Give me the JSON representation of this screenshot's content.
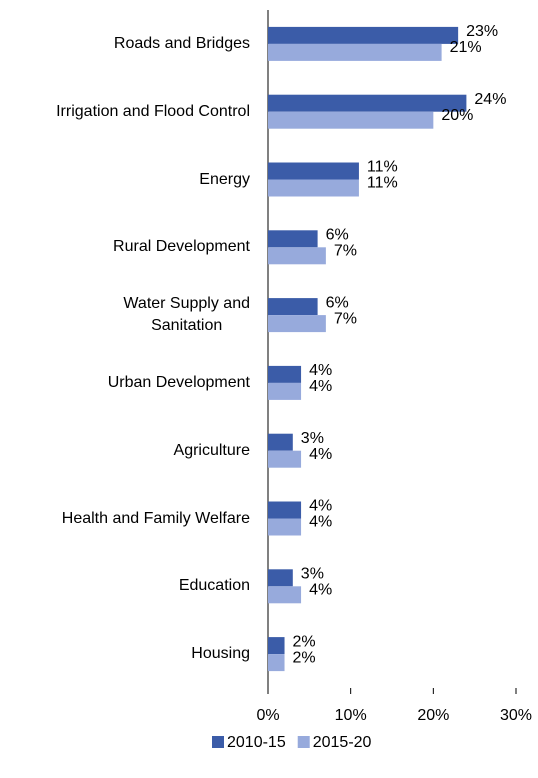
{
  "chart_data": {
    "type": "hbar",
    "categories": [
      "Roads and Bridges",
      "Irrigation and Flood Control",
      "Energy",
      "Rural Development",
      "Water Supply and\nSanitation",
      "Urban Development",
      "Agriculture",
      "Health and Family Welfare",
      "Education",
      "Housing"
    ],
    "series": [
      {
        "name": "2010-15",
        "color": "#3b5ca8",
        "values": [
          23,
          24,
          11,
          6,
          6,
          4,
          3,
          4,
          3,
          2
        ],
        "value_labels": [
          "23%",
          "24%",
          "11%",
          "6%",
          "6%",
          "4%",
          "3%",
          "4%",
          "3%",
          "2%"
        ]
      },
      {
        "name": "2015-20",
        "color": "#97aadc",
        "values": [
          21,
          20,
          11,
          7,
          7,
          4,
          4,
          4,
          4,
          2
        ],
        "value_labels": [
          "21%",
          "20%",
          "11%",
          "7%",
          "7%",
          "4%",
          "4%",
          "4%",
          "4%",
          "2%"
        ]
      }
    ],
    "xlim": [
      0,
      30
    ],
    "xticks": [
      {
        "value": 0,
        "label": "0%"
      },
      {
        "value": 10,
        "label": "10%"
      },
      {
        "value": 20,
        "label": "20%"
      },
      {
        "value": 30,
        "label": "30%"
      }
    ],
    "legend": "bottom"
  }
}
